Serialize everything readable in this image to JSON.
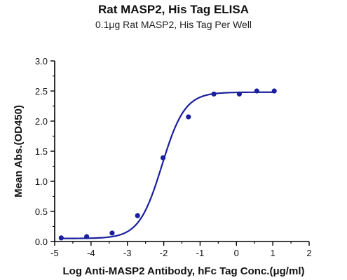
{
  "chart_data": {
    "type": "scatter",
    "title": "Rat MASP2, His Tag ELISA",
    "subtitle": "0.1μg Rat MASP2, His Tag Per Well",
    "xlabel": "Log Anti-MASP2 Antibody, hFc Tag Conc.(μg/ml)",
    "ylabel": "Mean Abs.(OD450)",
    "xlim": [
      -5,
      2
    ],
    "ylim": [
      0,
      3.0
    ],
    "x_ticks": [
      "-5",
      "-4",
      "-3",
      "-2",
      "-1",
      "0",
      "1",
      "2"
    ],
    "y_ticks": [
      "0.0",
      "0.5",
      "1.0",
      "1.5",
      "2.0",
      "2.5",
      "3.0"
    ],
    "grid": false,
    "series": [
      {
        "marker": "circle",
        "color": "#1a1f9c",
        "points": [
          {
            "x": -4.82,
            "y": 0.06
          },
          {
            "x": -4.12,
            "y": 0.08
          },
          {
            "x": -3.42,
            "y": 0.14
          },
          {
            "x": -2.72,
            "y": 0.43
          },
          {
            "x": -2.02,
            "y": 1.39
          },
          {
            "x": -1.32,
            "y": 2.07
          },
          {
            "x": -0.62,
            "y": 2.45
          },
          {
            "x": 0.08,
            "y": 2.45
          },
          {
            "x": 0.56,
            "y": 2.5
          },
          {
            "x": 1.04,
            "y": 2.5
          }
        ]
      }
    ],
    "fit": {
      "type": "4PL",
      "bottom": 0.05,
      "top": 2.48,
      "ec50_log": -2.05,
      "hill": 1.38,
      "x_range": [
        -4.82,
        1.04
      ],
      "color": "#1a1f9c"
    }
  }
}
